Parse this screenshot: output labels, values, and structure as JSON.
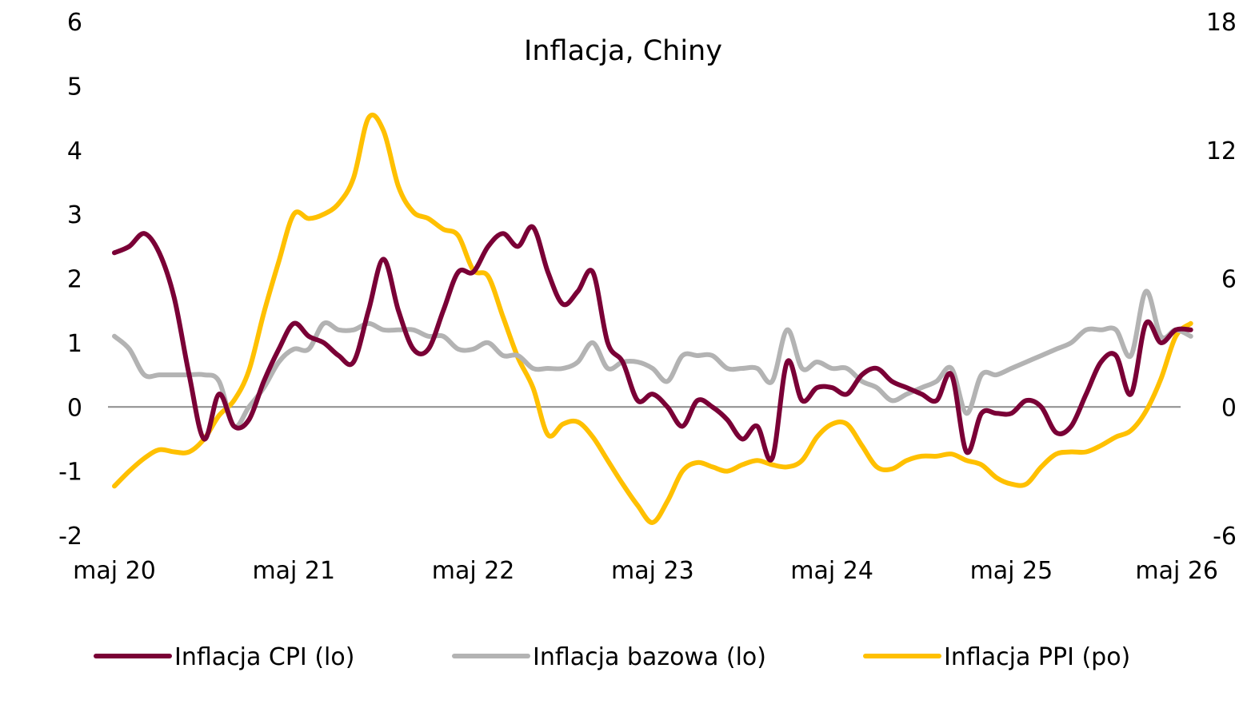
{
  "chart_data": {
    "type": "line",
    "title": "Inflacja, Chiny",
    "colors": {
      "cpi": "#7a0036",
      "core": "#b3b3b3",
      "ppi": "#ffc000",
      "zero_line": "#8c8c8c"
    },
    "y_left": {
      "range": [
        -2,
        6
      ],
      "ticks": [
        "6",
        "5",
        "4",
        "3",
        "2",
        "1",
        "0",
        "-1",
        "-2"
      ]
    },
    "y_right": {
      "range": [
        -6,
        18
      ],
      "ticks": [
        "18",
        "12",
        "6",
        "0",
        "-6"
      ]
    },
    "x_range": [
      "2020-05",
      "2026-04"
    ],
    "x_ticks": [
      "maj 20",
      "maj 21",
      "maj 22",
      "maj 23",
      "maj 24",
      "maj 25",
      "maj 26"
    ],
    "legend_position": "bottom",
    "series": [
      {
        "name": "Inflacja CPI (lo)",
        "axis": "left",
        "start": "2020-05",
        "values": [
          2.4,
          2.5,
          2.7,
          2.4,
          1.7,
          0.5,
          -0.5,
          0.2,
          -0.3,
          -0.2,
          0.4,
          0.9,
          1.3,
          1.1,
          1.0,
          0.8,
          0.7,
          1.5,
          2.3,
          1.5,
          0.9,
          0.9,
          1.5,
          2.1,
          2.1,
          2.5,
          2.7,
          2.5,
          2.8,
          2.1,
          1.6,
          1.8,
          2.1,
          1.0,
          0.7,
          0.1,
          0.2,
          0.0,
          -0.3,
          0.1,
          0.0,
          -0.2,
          -0.5,
          -0.3,
          -0.8,
          0.7,
          0.1,
          0.3,
          0.3,
          0.2,
          0.5,
          0.6,
          0.4,
          0.3,
          0.2,
          0.1,
          0.5,
          -0.7,
          -0.1,
          -0.1,
          -0.1,
          0.1,
          0.0,
          -0.4,
          -0.3,
          0.2,
          0.7,
          0.8,
          0.2,
          1.3,
          1.0,
          1.2,
          1.2
        ]
      },
      {
        "name": "Inflacja bazowa (lo)",
        "axis": "left",
        "start": "2020-05",
        "values": [
          1.1,
          0.9,
          0.5,
          0.5,
          0.5,
          0.5,
          0.5,
          0.4,
          -0.3,
          0.0,
          0.3,
          0.7,
          0.9,
          0.9,
          1.3,
          1.2,
          1.2,
          1.3,
          1.2,
          1.2,
          1.2,
          1.1,
          1.1,
          0.9,
          0.9,
          1.0,
          0.8,
          0.8,
          0.6,
          0.6,
          0.6,
          0.7,
          1.0,
          0.6,
          0.7,
          0.7,
          0.6,
          0.4,
          0.8,
          0.8,
          0.8,
          0.6,
          0.6,
          0.6,
          0.4,
          1.2,
          0.6,
          0.7,
          0.6,
          0.6,
          0.4,
          0.3,
          0.1,
          0.2,
          0.3,
          0.4,
          0.6,
          -0.1,
          0.5,
          0.5,
          0.6,
          0.7,
          0.8,
          0.9,
          1.0,
          1.2,
          1.2,
          1.2,
          0.8,
          1.8,
          1.1,
          1.2,
          1.1
        ]
      },
      {
        "name": "Inflacja PPI (po)",
        "axis": "right",
        "start": "2020-05",
        "values": [
          -3.7,
          -3.0,
          -2.4,
          -2.0,
          -2.1,
          -2.1,
          -1.5,
          -0.4,
          0.3,
          1.7,
          4.4,
          6.8,
          9.0,
          8.8,
          9.0,
          9.5,
          10.7,
          13.5,
          12.9,
          10.3,
          9.1,
          8.8,
          8.3,
          8.0,
          6.4,
          6.1,
          4.2,
          2.3,
          0.9,
          -1.3,
          -0.8,
          -0.7,
          -1.4,
          -2.5,
          -3.6,
          -4.6,
          -5.4,
          -4.4,
          -3.0,
          -2.6,
          -2.8,
          -3.0,
          -2.7,
          -2.5,
          -2.7,
          -2.8,
          -2.5,
          -1.4,
          -0.8,
          -0.8,
          -1.8,
          -2.8,
          -2.9,
          -2.5,
          -2.3,
          -2.3,
          -2.2,
          -2.5,
          -2.7,
          -3.3,
          -3.6,
          -3.6,
          -2.8,
          -2.2,
          -2.1,
          -2.1,
          -1.8,
          -1.4,
          -1.1,
          -0.2,
          1.3,
          3.3,
          3.9
        ]
      }
    ]
  }
}
